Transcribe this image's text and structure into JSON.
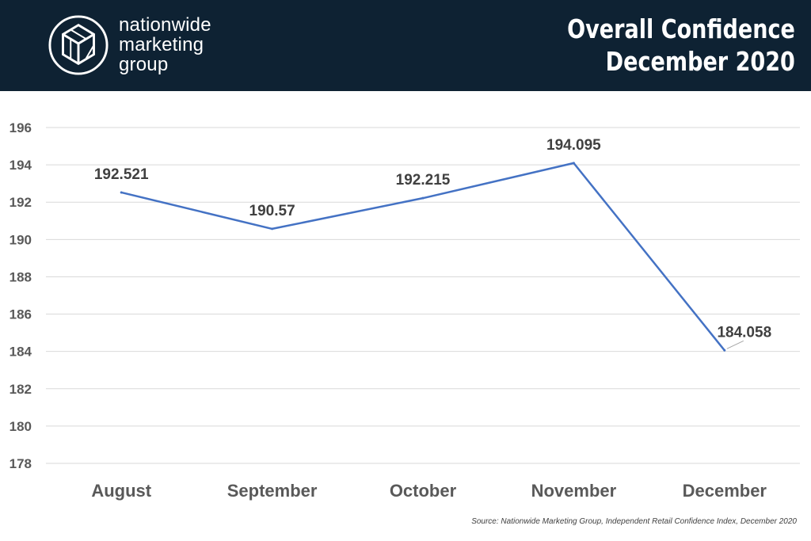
{
  "header": {
    "logo_lines": [
      "nationwide",
      "marketing",
      "group"
    ],
    "title_line1": "Overall Confidence",
    "title_line2": "December 2020",
    "background": "#0e2233"
  },
  "chart_data": {
    "type": "line",
    "title": "Overall Confidence December 2020",
    "categories": [
      "August",
      "September",
      "October",
      "November",
      "December"
    ],
    "series": [
      {
        "values": [
          192.521,
          190.57,
          192.215,
          194.095,
          184.058
        ],
        "labels": [
          "192.521",
          "190.57",
          "192.215",
          "194.095",
          "184.058"
        ],
        "color": "#4472c4"
      }
    ],
    "ylim": [
      178,
      196
    ],
    "yticks": [
      178,
      180,
      182,
      184,
      186,
      188,
      190,
      192,
      194,
      196
    ],
    "grid": true,
    "xlabel": "",
    "ylabel": ""
  },
  "source": "Source: Nationwide Marketing Group, Independent Retail Confidence Index, December 2020"
}
